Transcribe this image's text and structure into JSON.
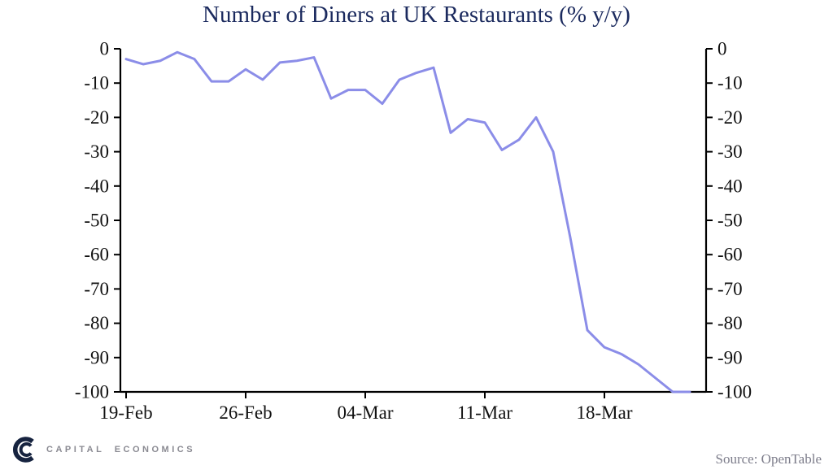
{
  "chart_data": {
    "type": "line",
    "title": "Number of Diners at UK Restaurants (% y/y)",
    "x": [
      "19-Feb",
      "20-Feb",
      "21-Feb",
      "22-Feb",
      "23-Feb",
      "24-Feb",
      "25-Feb",
      "26-Feb",
      "27-Feb",
      "28-Feb",
      "29-Feb",
      "01-Mar",
      "02-Mar",
      "03-Mar",
      "04-Mar",
      "05-Mar",
      "06-Mar",
      "07-Mar",
      "08-Mar",
      "09-Mar",
      "10-Mar",
      "11-Mar",
      "12-Mar",
      "13-Mar",
      "14-Mar",
      "15-Mar",
      "16-Mar",
      "17-Mar",
      "18-Mar",
      "19-Mar",
      "20-Mar",
      "21-Mar",
      "22-Mar",
      "23-Mar"
    ],
    "values": [
      -3,
      -4.5,
      -3.5,
      -1,
      -3,
      -9.5,
      -9.5,
      -6,
      -9,
      -4,
      -3.5,
      -2.5,
      -14.5,
      -12,
      -12,
      -16,
      -9,
      -7,
      -5.5,
      -24.5,
      -20.5,
      -21.5,
      -29.5,
      -26.5,
      -20,
      -30,
      -55,
      -82,
      -87,
      -89,
      -92,
      -96,
      -100,
      -100
    ],
    "ylim": [
      -100,
      0
    ],
    "y_ticks": [
      0,
      -10,
      -20,
      -30,
      -40,
      -50,
      -60,
      -70,
      -80,
      -90,
      -100
    ],
    "x_ticks": [
      {
        "index": 0,
        "label": "19-Feb"
      },
      {
        "index": 7,
        "label": "26-Feb"
      },
      {
        "index": 14,
        "label": "04-Mar"
      },
      {
        "index": 21,
        "label": "11-Mar"
      },
      {
        "index": 28,
        "label": "18-Mar"
      }
    ],
    "grid": false,
    "legend": "none",
    "line_color": "#8b8de8",
    "axis_color": "#000000",
    "title_color": "#1b2a5e"
  },
  "footer": {
    "brand": "CAPITAL ECONOMICS",
    "source": "Source: OpenTable"
  }
}
